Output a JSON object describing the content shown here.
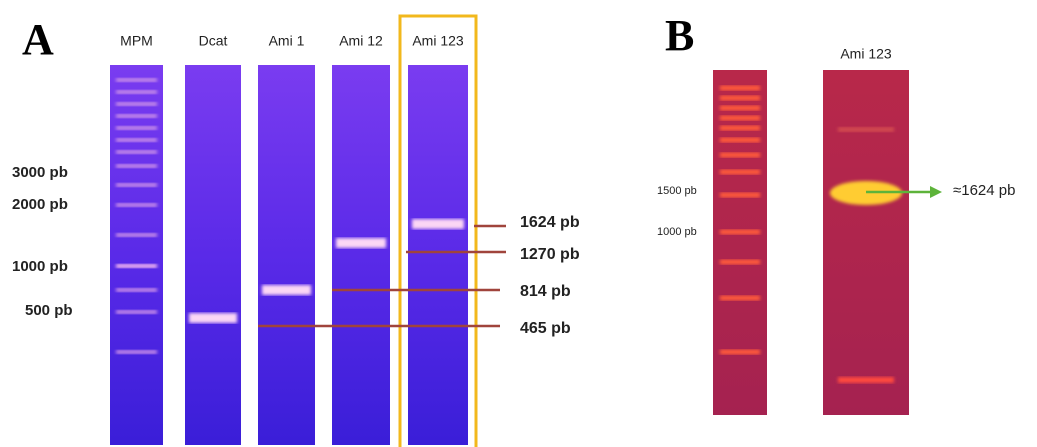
{
  "panel_a": {
    "letter": "A",
    "lanes": [
      "MPM",
      "Dcat",
      "Ami 1",
      "Ami 12",
      "Ami 123"
    ],
    "marker_labels": [
      "3000 pb",
      "2000 pb",
      "1000 pb",
      "500 pb"
    ],
    "band_labels": [
      "1624 pb",
      "1270 pb",
      "814 pb",
      "465 pb"
    ]
  },
  "panel_b": {
    "letter": "B",
    "lane": "Ami 123",
    "marker_labels": [
      "1500 pb",
      "1000 pb"
    ],
    "band_label": "≈1624 pb"
  }
}
